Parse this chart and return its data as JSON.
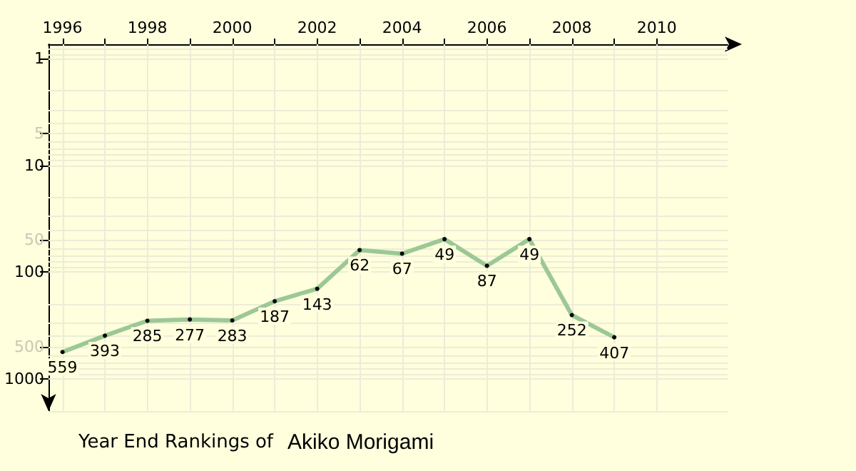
{
  "chart_data": {
    "type": "line",
    "title": "Year End Rankings of",
    "subtitle": "Akiko Morigami",
    "x": [
      1996,
      1997,
      1998,
      1999,
      2000,
      2001,
      2002,
      2003,
      2004,
      2005,
      2006,
      2007,
      2008,
      2009
    ],
    "series": [
      {
        "color": "#9cc896",
        "values": [
          559,
          393,
          285,
          277,
          283,
          187,
          143,
          62,
          67,
          49,
          87,
          49,
          252,
          407
        ]
      }
    ],
    "xlim": [
      1995.67,
      2011.67
    ],
    "xticks": [
      1996,
      {
        "value": 1997,
        "label": null
      },
      1998,
      {
        "value": 1999,
        "label": null
      },
      2000,
      {
        "value": 2001,
        "label": null
      },
      2002,
      {
        "value": 2003,
        "label": null
      },
      2004,
      {
        "value": 2005,
        "label": null
      },
      2006,
      {
        "value": 2007,
        "label": null
      },
      2008,
      {
        "value": 2009,
        "label": null
      },
      2010
    ],
    "ylim": [
      2000,
      0.73
    ],
    "yticks": [
      1,
      5,
      10,
      50,
      100,
      500,
      1000
    ],
    "log": "y",
    "grid": true,
    "marker": "circle",
    "line_style": "solid",
    "data_labels": true
  }
}
